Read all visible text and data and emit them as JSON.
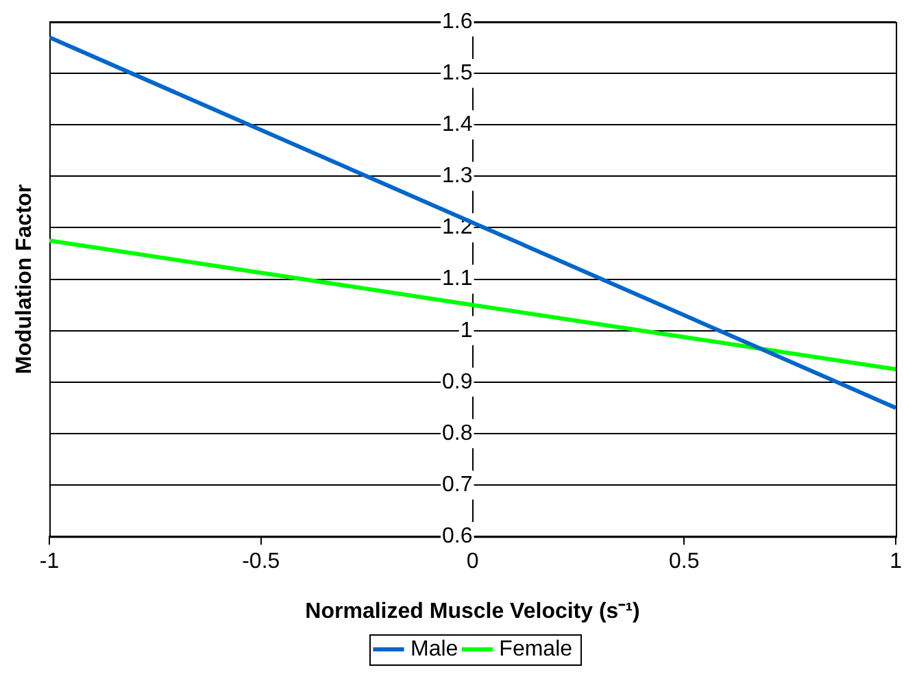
{
  "chart_data": {
    "type": "line",
    "xlabel": "Normalized Muscle Velocity (s⁻¹)",
    "ylabel": "Modulation Factor",
    "x": [
      -1,
      0,
      1
    ],
    "series": [
      {
        "name": "Male",
        "color": "#0066cc",
        "values": [
          1.57,
          1.21,
          0.85
        ]
      },
      {
        "name": "Female",
        "color": "#00ff00",
        "values": [
          1.175,
          1.05,
          0.925
        ]
      }
    ],
    "xlim": [
      -1,
      1
    ],
    "xticks": [
      -1,
      -0.5,
      0,
      0.5,
      1
    ],
    "ylim": [
      0.6,
      1.6
    ],
    "yticks": [
      0.6,
      0.7,
      0.8,
      0.9,
      1,
      1.1,
      1.2,
      1.3,
      1.4,
      1.5,
      1.6
    ],
    "grid": "y",
    "legend": "bottom",
    "marker": "none",
    "line_style": "solid"
  }
}
